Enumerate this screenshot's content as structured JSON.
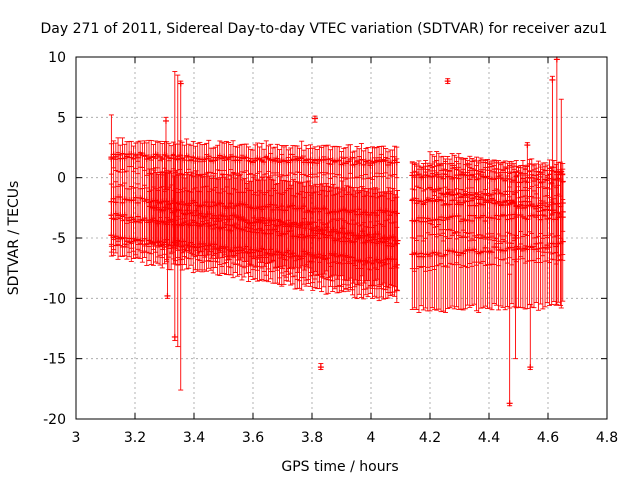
{
  "chart_data": {
    "type": "scatter",
    "title": "Day 271 of 2011, Sidereal Day-to-day VTEC variation (SDTVAR) for receiver azu1",
    "xlabel": "GPS time / hours",
    "ylabel": "SDTVAR / TECUs",
    "xlim": [
      3,
      4.8
    ],
    "ylim": [
      -20,
      10
    ],
    "x_ticks": [
      "3",
      "3.2",
      "3.4",
      "3.6",
      "3.8",
      "4",
      "4.2",
      "4.4",
      "4.6",
      "4.8"
    ],
    "y_ticks": [
      "-20",
      "-15",
      "-10",
      "-5",
      "0",
      "5",
      "10"
    ],
    "grid": true,
    "marker_color": "#ff0000",
    "error_bars": true,
    "tracks": [
      {
        "name": "track-1",
        "x_start": 3.12,
        "x_end": 4.09,
        "y_start": 1.8,
        "y_end": 1.2,
        "err_start": 1.2,
        "err_end": 1.2
      },
      {
        "name": "track-2",
        "x_start": 3.12,
        "x_end": 4.09,
        "y_start": -1.8,
        "y_end": -3.0,
        "err_start": 3.5,
        "err_end": 4.5
      },
      {
        "name": "track-3",
        "x_start": 3.12,
        "x_end": 4.09,
        "y_start": -3.2,
        "y_end": -5.5,
        "err_start": 2.5,
        "err_end": 4.0
      },
      {
        "name": "track-4",
        "x_start": 3.12,
        "x_end": 4.09,
        "y_start": -5.0,
        "y_end": -7.0,
        "err_start": 1.5,
        "err_end": 3.2
      },
      {
        "name": "track-5",
        "x_start": 3.25,
        "x_end": 4.09,
        "y_start": -2.5,
        "y_end": -5.0,
        "err_start": 3.0,
        "err_end": 4.0
      },
      {
        "name": "track-6",
        "x_start": 4.14,
        "x_end": 4.65,
        "y_start": 0.2,
        "y_end": -0.3,
        "err_start": 1.0,
        "err_end": 1.5
      },
      {
        "name": "track-7",
        "x_start": 4.14,
        "x_end": 4.65,
        "y_start": -2.0,
        "y_end": -2.2,
        "err_start": 3.0,
        "err_end": 2.5
      },
      {
        "name": "track-8",
        "x_start": 4.14,
        "x_end": 4.65,
        "y_start": -3.5,
        "y_end": -3.2,
        "err_start": 4.0,
        "err_end": 3.5
      },
      {
        "name": "track-9",
        "x_start": 4.14,
        "x_end": 4.65,
        "y_start": -6.5,
        "y_end": -5.5,
        "err_start": 4.5,
        "err_end": 5.0
      },
      {
        "name": "track-10",
        "x_start": 4.2,
        "x_end": 4.65,
        "y_start": -1.0,
        "y_end": -3.0,
        "err_start": 3.0,
        "err_end": 3.5
      }
    ],
    "outliers": [
      {
        "x": 3.12,
        "y": 1.7,
        "low": -6.5,
        "high": 5.2
      },
      {
        "x": 3.305,
        "y": 4.7,
        "low": -1.0,
        "high": 5.0
      },
      {
        "x": 3.31,
        "y": -9.8,
        "low": -10.0,
        "high": -2.0
      },
      {
        "x": 3.335,
        "y": -13.2,
        "low": -13.5,
        "high": 8.8
      },
      {
        "x": 3.345,
        "y": -5.5,
        "low": -14.0,
        "high": 8.5
      },
      {
        "x": 3.355,
        "y": 7.8,
        "low": -17.6,
        "high": 8.0
      },
      {
        "x": 3.81,
        "y": 4.9,
        "low": 4.6,
        "high": 5.1
      },
      {
        "x": 3.83,
        "y": -15.7,
        "low": -15.9,
        "high": -15.4
      },
      {
        "x": 4.26,
        "y": 8.0,
        "low": 7.8,
        "high": 8.2
      },
      {
        "x": 4.47,
        "y": -18.7,
        "low": -18.9,
        "high": -8.0
      },
      {
        "x": 4.49,
        "y": -5.0,
        "low": -15.0,
        "high": 0.5
      },
      {
        "x": 4.53,
        "y": 2.7,
        "low": -2.0,
        "high": 2.9
      },
      {
        "x": 4.54,
        "y": -15.7,
        "low": -15.9,
        "high": -10.5
      },
      {
        "x": 4.615,
        "y": 8.1,
        "low": -3.0,
        "high": 8.4
      },
      {
        "x": 4.63,
        "y": 9.8,
        "low": -10.5,
        "high": 10.0
      },
      {
        "x": 4.645,
        "y": 0.5,
        "low": -10.8,
        "high": 6.5
      }
    ]
  }
}
